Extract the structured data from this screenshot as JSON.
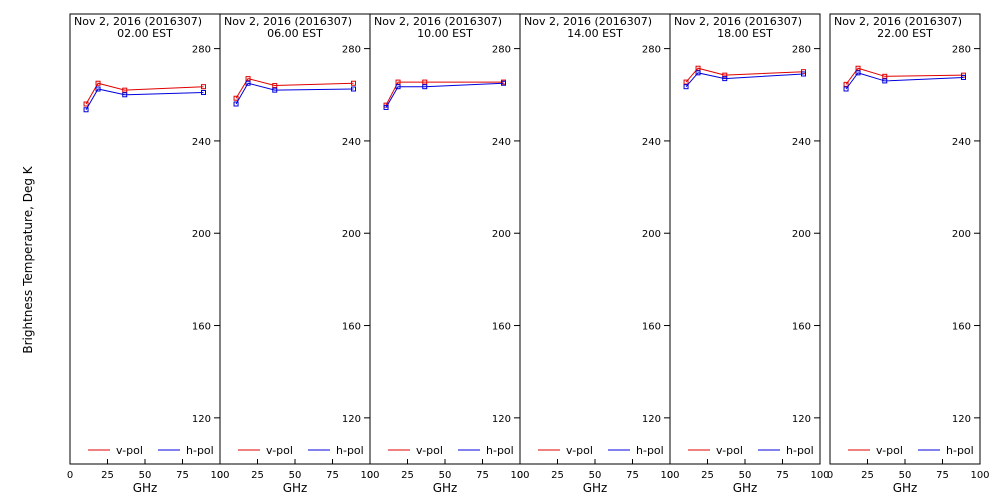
{
  "chart_data": {
    "type": "line",
    "ylabel": "Brightness Temperature, Deg K",
    "xlabel": "GHz",
    "xlim": [
      0,
      100
    ],
    "ylim": [
      100,
      295
    ],
    "x_ticks": [
      0,
      25,
      50,
      75,
      100
    ],
    "x_tick_labels": [
      "0",
      "25",
      "50",
      "75",
      "100"
    ],
    "y_ticks": [
      120,
      160,
      200,
      240,
      280
    ],
    "y_tick_labels": [
      "120",
      "160",
      "200",
      "240",
      "280"
    ],
    "legend": {
      "placement": "bottom",
      "entries": [
        "v-pol",
        "h-pol"
      ]
    },
    "colors": {
      "v-pol": "#e00000",
      "h-pol": "#0000dd"
    },
    "x": [
      10.7,
      18.7,
      36.5,
      89.0
    ],
    "panels": [
      {
        "date": "Nov  2, 2016 (2016307)",
        "time": "02.00 EST",
        "series": [
          {
            "name": "v-pol",
            "values": [
              256,
              265,
              262,
              263.5
            ]
          },
          {
            "name": "h-pol",
            "values": [
              253.5,
              262.5,
              260,
              261
            ]
          }
        ]
      },
      {
        "date": "Nov  2, 2016 (2016307)",
        "time": "06.00 EST",
        "series": [
          {
            "name": "v-pol",
            "values": [
              258.5,
              267,
              264,
              265
            ]
          },
          {
            "name": "h-pol",
            "values": [
              256,
              265,
              262,
              262.5
            ]
          }
        ]
      },
      {
        "date": "Nov  2, 2016 (2016307)",
        "time": "10.00 EST",
        "series": [
          {
            "name": "v-pol",
            "values": [
              255.5,
              265.5,
              265.5,
              265.5
            ]
          },
          {
            "name": "h-pol",
            "values": [
              254.5,
              263.5,
              263.5,
              265
            ]
          }
        ]
      },
      {
        "date": "Nov  2, 2016 (2016307)",
        "time": "14.00 EST",
        "series": [
          {
            "name": "v-pol",
            "values": []
          },
          {
            "name": "h-pol",
            "values": []
          }
        ]
      },
      {
        "date": "Nov  2, 2016 (2016307)",
        "time": "18.00 EST",
        "series": [
          {
            "name": "v-pol",
            "values": [
              265.5,
              271.5,
              268.5,
              270
            ]
          },
          {
            "name": "h-pol",
            "values": [
              263.5,
              269.5,
              267,
              269
            ]
          }
        ]
      },
      {
        "date": "Nov  2, 2016 (2016307)",
        "time": "22.00 EST",
        "series": [
          {
            "name": "v-pol",
            "values": [
              264.5,
              271.5,
              268,
              268.5
            ]
          },
          {
            "name": "h-pol",
            "values": [
              262.5,
              269.5,
              266,
              267.5
            ]
          }
        ]
      }
    ]
  }
}
